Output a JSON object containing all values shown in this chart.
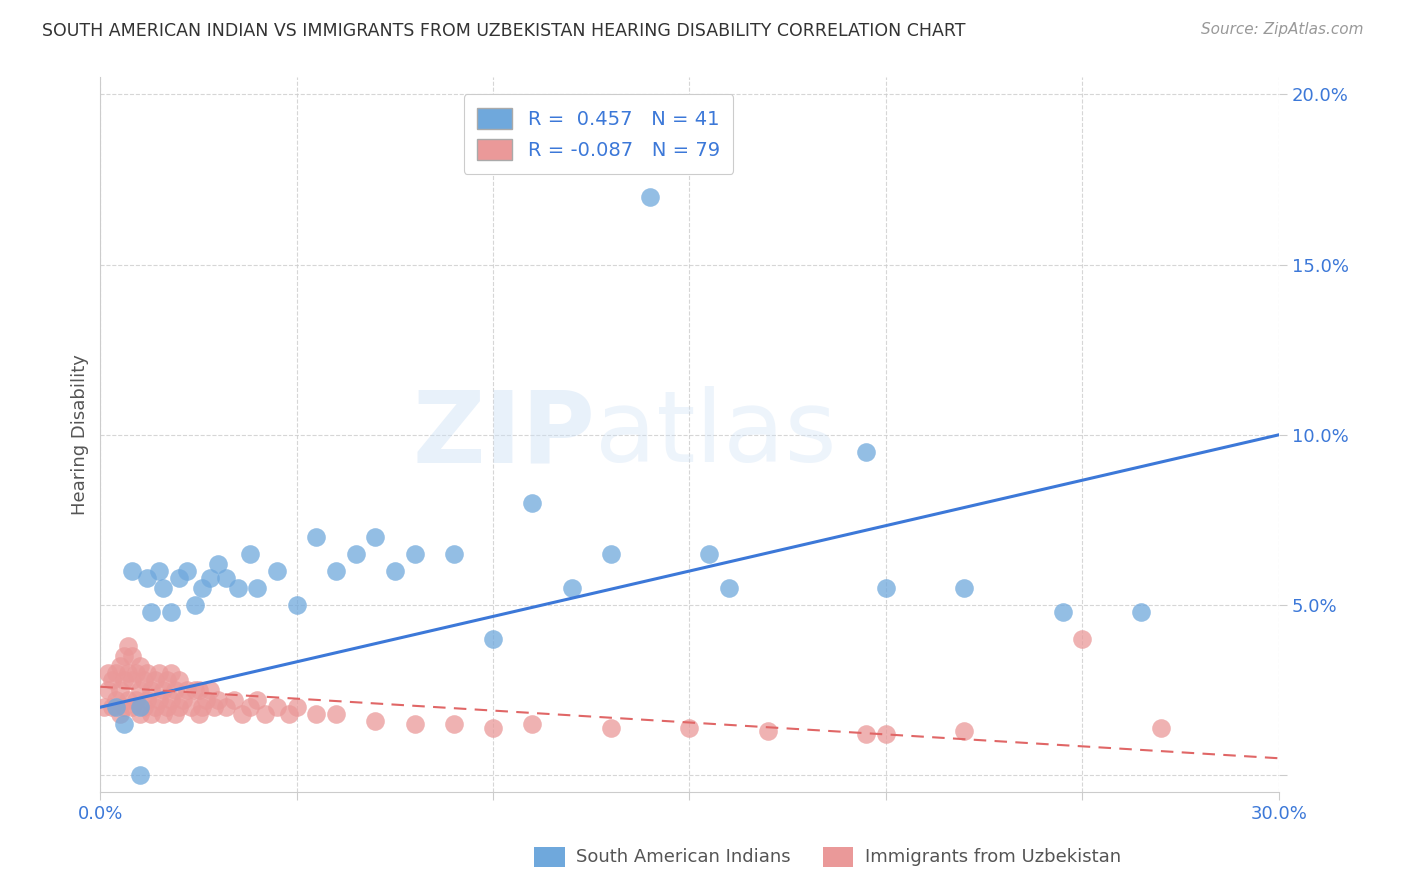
{
  "title": "SOUTH AMERICAN INDIAN VS IMMIGRANTS FROM UZBEKISTAN HEARING DISABILITY CORRELATION CHART",
  "source": "Source: ZipAtlas.com",
  "ylabel": "Hearing Disability",
  "xlim": [
    0.0,
    0.3
  ],
  "ylim": [
    -0.005,
    0.205
  ],
  "xticks": [
    0.0,
    0.05,
    0.1,
    0.15,
    0.2,
    0.25,
    0.3
  ],
  "yticks": [
    0.0,
    0.05,
    0.1,
    0.15,
    0.2
  ],
  "series1_name": "South American Indians",
  "series1_color": "#6fa8dc",
  "series1_R": 0.457,
  "series1_N": 41,
  "series1_x": [
    0.004,
    0.006,
    0.008,
    0.01,
    0.012,
    0.013,
    0.015,
    0.016,
    0.018,
    0.02,
    0.022,
    0.024,
    0.026,
    0.028,
    0.03,
    0.032,
    0.035,
    0.038,
    0.04,
    0.045,
    0.05,
    0.055,
    0.06,
    0.065,
    0.07,
    0.075,
    0.08,
    0.09,
    0.1,
    0.11,
    0.12,
    0.13,
    0.14,
    0.155,
    0.16,
    0.195,
    0.2,
    0.22,
    0.245,
    0.265,
    0.01
  ],
  "series1_y": [
    0.02,
    0.015,
    0.06,
    0.02,
    0.058,
    0.048,
    0.06,
    0.055,
    0.048,
    0.058,
    0.06,
    0.05,
    0.055,
    0.058,
    0.062,
    0.058,
    0.055,
    0.065,
    0.055,
    0.06,
    0.05,
    0.07,
    0.06,
    0.065,
    0.07,
    0.06,
    0.065,
    0.065,
    0.04,
    0.08,
    0.055,
    0.065,
    0.17,
    0.065,
    0.055,
    0.095,
    0.055,
    0.055,
    0.048,
    0.048,
    0.0
  ],
  "series2_name": "Immigrants from Uzbekistan",
  "series2_color": "#ea9999",
  "series2_R": -0.087,
  "series2_N": 79,
  "series2_x": [
    0.001,
    0.002,
    0.002,
    0.003,
    0.003,
    0.004,
    0.004,
    0.005,
    0.005,
    0.005,
    0.006,
    0.006,
    0.006,
    0.007,
    0.007,
    0.007,
    0.008,
    0.008,
    0.008,
    0.009,
    0.009,
    0.01,
    0.01,
    0.01,
    0.011,
    0.011,
    0.012,
    0.012,
    0.013,
    0.013,
    0.014,
    0.014,
    0.015,
    0.015,
    0.016,
    0.016,
    0.017,
    0.017,
    0.018,
    0.018,
    0.019,
    0.019,
    0.02,
    0.02,
    0.021,
    0.022,
    0.023,
    0.024,
    0.025,
    0.025,
    0.026,
    0.027,
    0.028,
    0.029,
    0.03,
    0.032,
    0.034,
    0.036,
    0.038,
    0.04,
    0.042,
    0.045,
    0.048,
    0.05,
    0.055,
    0.06,
    0.07,
    0.08,
    0.09,
    0.1,
    0.11,
    0.13,
    0.15,
    0.17,
    0.195,
    0.2,
    0.22,
    0.25,
    0.27
  ],
  "series2_y": [
    0.02,
    0.025,
    0.03,
    0.02,
    0.028,
    0.022,
    0.03,
    0.018,
    0.025,
    0.032,
    0.02,
    0.028,
    0.035,
    0.022,
    0.03,
    0.038,
    0.02,
    0.028,
    0.035,
    0.022,
    0.03,
    0.018,
    0.025,
    0.032,
    0.02,
    0.028,
    0.022,
    0.03,
    0.018,
    0.025,
    0.02,
    0.028,
    0.022,
    0.03,
    0.018,
    0.025,
    0.02,
    0.028,
    0.022,
    0.03,
    0.018,
    0.025,
    0.02,
    0.028,
    0.022,
    0.025,
    0.02,
    0.025,
    0.018,
    0.025,
    0.02,
    0.022,
    0.025,
    0.02,
    0.022,
    0.02,
    0.022,
    0.018,
    0.02,
    0.022,
    0.018,
    0.02,
    0.018,
    0.02,
    0.018,
    0.018,
    0.016,
    0.015,
    0.015,
    0.014,
    0.015,
    0.014,
    0.014,
    0.013,
    0.012,
    0.012,
    0.013,
    0.04,
    0.014
  ],
  "line1_x": [
    0.0,
    0.3
  ],
  "line1_y": [
    0.02,
    0.1
  ],
  "line1_color": "#3c78d8",
  "line2_x": [
    0.0,
    0.3
  ],
  "line2_y": [
    0.026,
    0.005
  ],
  "line2_color": "#e06666",
  "watermark_zip": "ZIP",
  "watermark_atlas": "atlas",
  "background_color": "#ffffff",
  "legend_color": "#3c78d8",
  "title_color": "#333333",
  "source_color": "#999999",
  "ylabel_color": "#555555",
  "tick_color": "#3c78d8",
  "grid_color": "#cccccc"
}
